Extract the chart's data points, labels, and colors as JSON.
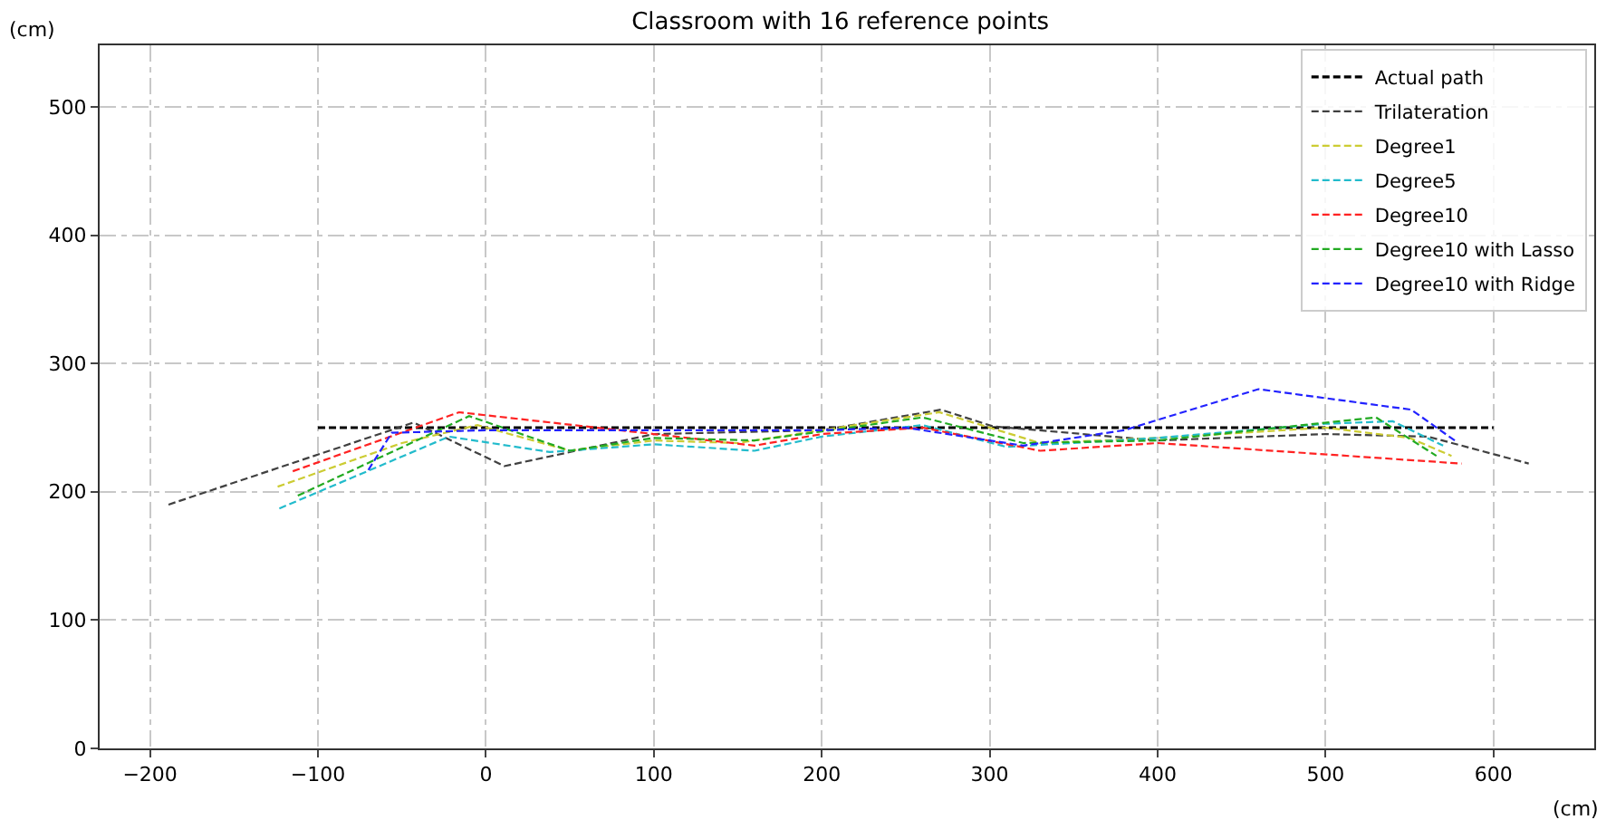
{
  "chart_data": {
    "type": "line",
    "title": "Classroom with 16 reference points",
    "xlabel": "(cm)",
    "ylabel": "(cm)",
    "xlim": [
      -230,
      660
    ],
    "ylim": [
      0,
      548
    ],
    "xticks": [
      -200,
      -100,
      0,
      100,
      200,
      300,
      400,
      500,
      600
    ],
    "yticks": [
      0,
      100,
      200,
      300,
      400,
      500
    ],
    "grid": true,
    "legend": "top right",
    "line_style": "dashed",
    "marker": "none",
    "series": [
      {
        "name": "Actual path",
        "color": "#000000",
        "x": [
          -100,
          600
        ],
        "values": [
          250,
          250
        ]
      },
      {
        "name": "Trilateration",
        "color": "#404040",
        "x": [
          -189,
          -43,
          11,
          100,
          200,
          271,
          302,
          400,
          500,
          561,
          621
        ],
        "values": [
          190,
          254,
          220,
          245,
          248,
          264,
          251,
          240,
          245,
          243,
          222
        ]
      },
      {
        "name": "Degree1",
        "color": "#cccc33",
        "x": [
          -124,
          -50,
          -5,
          50,
          100,
          150,
          200,
          270,
          330,
          400,
          500,
          550,
          575
        ],
        "values": [
          204,
          238,
          252,
          232,
          240,
          238,
          248,
          262,
          238,
          242,
          250,
          242,
          228
        ]
      },
      {
        "name": "Degree5",
        "color": "#22bbcc",
        "x": [
          -123,
          -22,
          38,
          100,
          160,
          200,
          260,
          310,
          400,
          500,
          540,
          570
        ],
        "values": [
          187,
          243,
          231,
          237,
          232,
          243,
          252,
          235,
          242,
          253,
          255,
          236
        ]
      },
      {
        "name": "Degree10",
        "color": "#ff2222",
        "x": [
          -115,
          -16,
          100,
          160,
          200,
          260,
          330,
          400,
          581
        ],
        "values": [
          216,
          262,
          245,
          236,
          245,
          250,
          232,
          238,
          222
        ]
      },
      {
        "name": "Degree10 with Lasso",
        "color": "#22aa22",
        "x": [
          -112,
          -10,
          50,
          100,
          160,
          200,
          260,
          320,
          400,
          530,
          566
        ],
        "values": [
          197,
          259,
          232,
          242,
          240,
          247,
          258,
          238,
          240,
          258,
          228
        ]
      },
      {
        "name": "Degree10 with Ridge",
        "color": "#2222ff",
        "x": [
          -70,
          -56,
          0,
          100,
          200,
          250,
          320,
          380,
          460,
          551,
          578
        ],
        "values": [
          217,
          246,
          248,
          248,
          248,
          250,
          236,
          248,
          280,
          264,
          239
        ]
      }
    ]
  }
}
